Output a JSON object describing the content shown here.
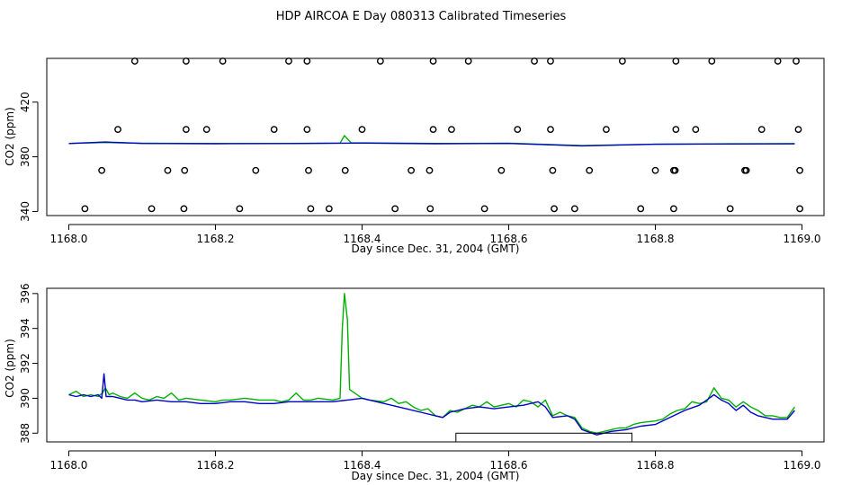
{
  "chart_data": [
    {
      "type": "line",
      "title": "HDP AIRCOA E  Day 080313  Calibrated Timeseries",
      "xlabel": "Day since Dec. 31, 2004 (GMT)",
      "ylabel": "CO2 (ppm)",
      "xlim": [
        1167.97,
        1169.03
      ],
      "ylim": [
        337,
        452
      ],
      "xticks": [
        "1168.0",
        "1168.2",
        "1168.4",
        "1168.6",
        "1168.8",
        "1169.0"
      ],
      "yticks": [
        "340",
        "380",
        "420"
      ],
      "colors": {
        "green": "#00b000",
        "blue": "#0000cc"
      },
      "series": [
        {
          "values": [
            [
              1168.0,
              389.8
            ],
            [
              1168.05,
              390.4
            ],
            [
              1168.1,
              389.9
            ],
            [
              1168.2,
              389.7
            ],
            [
              1168.3,
              389.8
            ],
            [
              1168.37,
              390.0
            ],
            [
              1168.376,
              395.5
            ],
            [
              1168.385,
              390.2
            ],
            [
              1168.5,
              389.8
            ],
            [
              1168.6,
              389.9
            ],
            [
              1168.7,
              388.2
            ],
            [
              1168.8,
              389.2
            ],
            [
              1168.9,
              389.5
            ],
            [
              1168.99,
              389.6
            ]
          ]
        },
        {
          "values": [
            [
              1168.0,
              389.7
            ],
            [
              1168.05,
              390.8
            ],
            [
              1168.1,
              389.8
            ],
            [
              1168.2,
              389.6
            ],
            [
              1168.3,
              389.7
            ],
            [
              1168.4,
              390.0
            ],
            [
              1168.5,
              389.6
            ],
            [
              1168.6,
              389.8
            ],
            [
              1168.7,
              388.0
            ],
            [
              1168.8,
              389.2
            ],
            [
              1168.9,
              389.4
            ],
            [
              1168.99,
              389.5
            ]
          ]
        }
      ],
      "markers": [
        {
          "y": 450,
          "x": [
            1168.09,
            1168.16,
            1168.21,
            1168.3,
            1168.325,
            1168.425,
            1168.497,
            1168.545,
            1168.635,
            1168.657,
            1168.755,
            1168.828,
            1168.877,
            1168.967,
            1168.992
          ]
        },
        {
          "y": 400,
          "x": [
            1168.067,
            1168.16,
            1168.188,
            1168.28,
            1168.325,
            1168.4,
            1168.497,
            1168.522,
            1168.612,
            1168.657,
            1168.733,
            1168.828,
            1168.855,
            1168.945,
            1168.995
          ]
        },
        {
          "y": 370,
          "x": [
            1168.045,
            1168.135,
            1168.158,
            1168.255,
            1168.327,
            1168.377,
            1168.467,
            1168.492,
            1168.59,
            1168.66,
            1168.71,
            1168.8,
            1168.825,
            1168.827,
            1168.922,
            1168.924,
            1168.997
          ]
        },
        {
          "y": 342,
          "x": [
            1168.022,
            1168.113,
            1168.157,
            1168.233,
            1168.33,
            1168.355,
            1168.445,
            1168.493,
            1168.567,
            1168.662,
            1168.69,
            1168.78,
            1168.825,
            1168.902,
            1168.997
          ]
        }
      ]
    },
    {
      "type": "line",
      "xlabel": "Day since Dec. 31, 2004 (GMT)",
      "ylabel": "CO2 (ppm)",
      "xlim": [
        1167.97,
        1169.03
      ],
      "ylim": [
        387.5,
        396.3
      ],
      "xticks": [
        "1168.0",
        "1168.2",
        "1168.4",
        "1168.6",
        "1168.8",
        "1169.0"
      ],
      "yticks": [
        "388",
        "390",
        "392",
        "394",
        "396"
      ],
      "colors": {
        "green": "#00b000",
        "blue": "#0000cc"
      },
      "series": [
        {
          "values": [
            [
              1168.0,
              390.2
            ],
            [
              1168.01,
              390.4
            ],
            [
              1168.02,
              390.1
            ],
            [
              1168.03,
              390.2
            ],
            [
              1168.04,
              390.1
            ],
            [
              1168.046,
              390.3
            ],
            [
              1168.05,
              390.6
            ],
            [
              1168.055,
              390.2
            ],
            [
              1168.06,
              390.3
            ],
            [
              1168.07,
              390.1
            ],
            [
              1168.08,
              390.0
            ],
            [
              1168.09,
              390.3
            ],
            [
              1168.1,
              390.0
            ],
            [
              1168.11,
              389.9
            ],
            [
              1168.12,
              390.1
            ],
            [
              1168.13,
              390.0
            ],
            [
              1168.14,
              390.3
            ],
            [
              1168.15,
              389.9
            ],
            [
              1168.16,
              390.0
            ],
            [
              1168.18,
              389.9
            ],
            [
              1168.2,
              389.8
            ],
            [
              1168.21,
              389.9
            ],
            [
              1168.22,
              389.9
            ],
            [
              1168.24,
              390.0
            ],
            [
              1168.26,
              389.9
            ],
            [
              1168.28,
              389.9
            ],
            [
              1168.29,
              389.8
            ],
            [
              1168.3,
              389.9
            ],
            [
              1168.31,
              390.3
            ],
            [
              1168.32,
              389.9
            ],
            [
              1168.33,
              389.9
            ],
            [
              1168.34,
              390.0
            ],
            [
              1168.36,
              389.9
            ],
            [
              1168.37,
              390.0
            ],
            [
              1168.373,
              394.0
            ],
            [
              1168.376,
              396.0
            ],
            [
              1168.38,
              394.5
            ],
            [
              1168.383,
              390.5
            ],
            [
              1168.39,
              390.3
            ],
            [
              1168.4,
              390.0
            ],
            [
              1168.41,
              389.9
            ],
            [
              1168.43,
              389.8
            ],
            [
              1168.44,
              390.0
            ],
            [
              1168.45,
              389.7
            ],
            [
              1168.46,
              389.8
            ],
            [
              1168.47,
              389.5
            ],
            [
              1168.48,
              389.3
            ],
            [
              1168.49,
              389.4
            ],
            [
              1168.5,
              389.0
            ],
            [
              1168.51,
              388.9
            ],
            [
              1168.52,
              389.3
            ],
            [
              1168.53,
              389.2
            ],
            [
              1168.54,
              389.4
            ],
            [
              1168.55,
              389.6
            ],
            [
              1168.56,
              389.5
            ],
            [
              1168.57,
              389.8
            ],
            [
              1168.58,
              389.5
            ],
            [
              1168.59,
              389.6
            ],
            [
              1168.6,
              389.7
            ],
            [
              1168.61,
              389.5
            ],
            [
              1168.62,
              389.9
            ],
            [
              1168.63,
              389.8
            ],
            [
              1168.64,
              389.5
            ],
            [
              1168.65,
              389.9
            ],
            [
              1168.66,
              389.0
            ],
            [
              1168.67,
              389.2
            ],
            [
              1168.68,
              389.0
            ],
            [
              1168.69,
              388.9
            ],
            [
              1168.7,
              388.3
            ],
            [
              1168.71,
              388.1
            ],
            [
              1168.72,
              388.0
            ],
            [
              1168.73,
              388.1
            ],
            [
              1168.74,
              388.2
            ],
            [
              1168.75,
              388.3
            ],
            [
              1168.76,
              388.3
            ],
            [
              1168.77,
              388.5
            ],
            [
              1168.78,
              388.6
            ],
            [
              1168.8,
              388.7
            ],
            [
              1168.81,
              388.8
            ],
            [
              1168.82,
              389.1
            ],
            [
              1168.83,
              389.3
            ],
            [
              1168.84,
              389.4
            ],
            [
              1168.85,
              389.8
            ],
            [
              1168.86,
              389.7
            ],
            [
              1168.87,
              389.8
            ],
            [
              1168.88,
              390.6
            ],
            [
              1168.89,
              390.0
            ],
            [
              1168.9,
              389.9
            ],
            [
              1168.91,
              389.5
            ],
            [
              1168.92,
              389.8
            ],
            [
              1168.93,
              389.5
            ],
            [
              1168.94,
              389.3
            ],
            [
              1168.95,
              389.0
            ],
            [
              1168.96,
              389.0
            ],
            [
              1168.97,
              388.9
            ],
            [
              1168.98,
              388.9
            ],
            [
              1168.99,
              389.5
            ]
          ]
        },
        {
          "values": [
            [
              1168.0,
              390.2
            ],
            [
              1168.01,
              390.1
            ],
            [
              1168.02,
              390.2
            ],
            [
              1168.03,
              390.1
            ],
            [
              1168.04,
              390.2
            ],
            [
              1168.045,
              390.0
            ],
            [
              1168.048,
              391.4
            ],
            [
              1168.051,
              390.1
            ],
            [
              1168.06,
              390.1
            ],
            [
              1168.07,
              390.0
            ],
            [
              1168.08,
              389.9
            ],
            [
              1168.09,
              389.9
            ],
            [
              1168.1,
              389.8
            ],
            [
              1168.12,
              389.9
            ],
            [
              1168.14,
              389.8
            ],
            [
              1168.16,
              389.8
            ],
            [
              1168.18,
              389.7
            ],
            [
              1168.2,
              389.7
            ],
            [
              1168.22,
              389.8
            ],
            [
              1168.24,
              389.8
            ],
            [
              1168.26,
              389.7
            ],
            [
              1168.28,
              389.7
            ],
            [
              1168.3,
              389.8
            ],
            [
              1168.32,
              389.8
            ],
            [
              1168.34,
              389.8
            ],
            [
              1168.36,
              389.8
            ],
            [
              1168.38,
              389.9
            ],
            [
              1168.4,
              390.0
            ],
            [
              1168.42,
              389.8
            ],
            [
              1168.44,
              389.6
            ],
            [
              1168.46,
              389.4
            ],
            [
              1168.48,
              389.2
            ],
            [
              1168.5,
              389.0
            ],
            [
              1168.51,
              388.9
            ],
            [
              1168.52,
              389.2
            ],
            [
              1168.54,
              389.4
            ],
            [
              1168.56,
              389.5
            ],
            [
              1168.58,
              389.4
            ],
            [
              1168.6,
              389.5
            ],
            [
              1168.62,
              389.6
            ],
            [
              1168.64,
              389.8
            ],
            [
              1168.65,
              389.5
            ],
            [
              1168.66,
              388.9
            ],
            [
              1168.68,
              389.0
            ],
            [
              1168.69,
              388.8
            ],
            [
              1168.7,
              388.2
            ],
            [
              1168.72,
              387.9
            ],
            [
              1168.74,
              388.1
            ],
            [
              1168.76,
              388.2
            ],
            [
              1168.78,
              388.4
            ],
            [
              1168.8,
              388.5
            ],
            [
              1168.82,
              388.9
            ],
            [
              1168.84,
              389.3
            ],
            [
              1168.86,
              389.6
            ],
            [
              1168.87,
              389.9
            ],
            [
              1168.88,
              390.2
            ],
            [
              1168.89,
              389.9
            ],
            [
              1168.9,
              389.7
            ],
            [
              1168.91,
              389.3
            ],
            [
              1168.92,
              389.6
            ],
            [
              1168.93,
              389.2
            ],
            [
              1168.94,
              389.0
            ],
            [
              1168.96,
              388.8
            ],
            [
              1168.98,
              388.8
            ],
            [
              1168.99,
              389.3
            ]
          ]
        }
      ],
      "rect": {
        "x0": 1168.528,
        "x1": 1168.768,
        "y0": 387.5,
        "y1": 388.0
      }
    }
  ]
}
